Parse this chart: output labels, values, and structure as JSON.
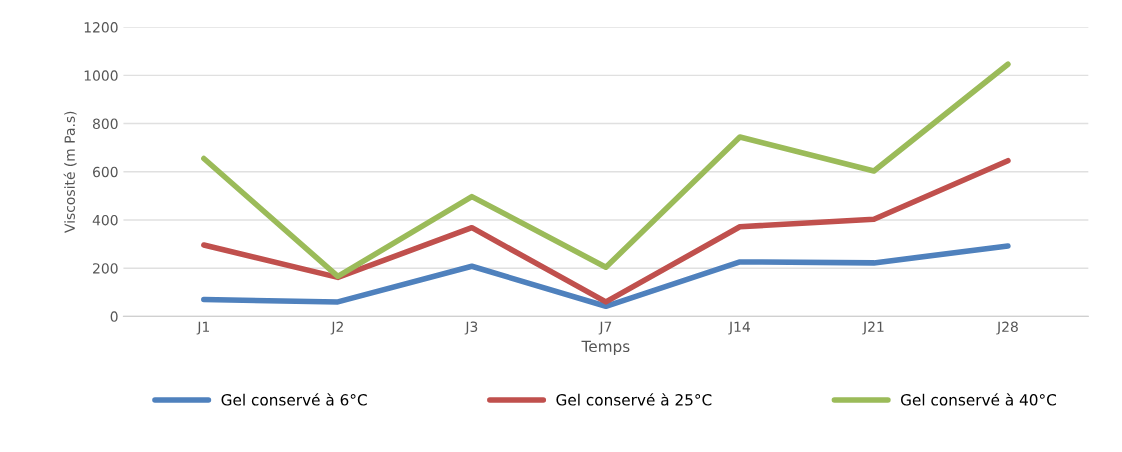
{
  "chart_data": {
    "type": "line",
    "xlabel": "Temps",
    "ylabel": "Viscosité (m Pa.s)",
    "categories": [
      "J1",
      "J2",
      "J3",
      "J7",
      "J14",
      "J21",
      "J28"
    ],
    "series": [
      {
        "name": "Gel conservé à 6°C",
        "color": "#4f81bd",
        "values": [
          70,
          60,
          208,
          42,
          226,
          222,
          292
        ]
      },
      {
        "name": "Gel conservé à 25°C",
        "color": "#c0504d",
        "values": [
          296,
          162,
          368,
          60,
          372,
          403,
          646
        ]
      },
      {
        "name": "Gel conservé à 40°C",
        "color": "#9bbb59",
        "values": [
          655,
          166,
          497,
          204,
          744,
          603,
          1046
        ]
      }
    ],
    "ylim": [
      0,
      1200
    ],
    "yticks": [
      0,
      200,
      400,
      600,
      800,
      1000,
      1200
    ],
    "grid": "y",
    "legend": "bottom",
    "marker": "none",
    "line_style": "solid"
  }
}
